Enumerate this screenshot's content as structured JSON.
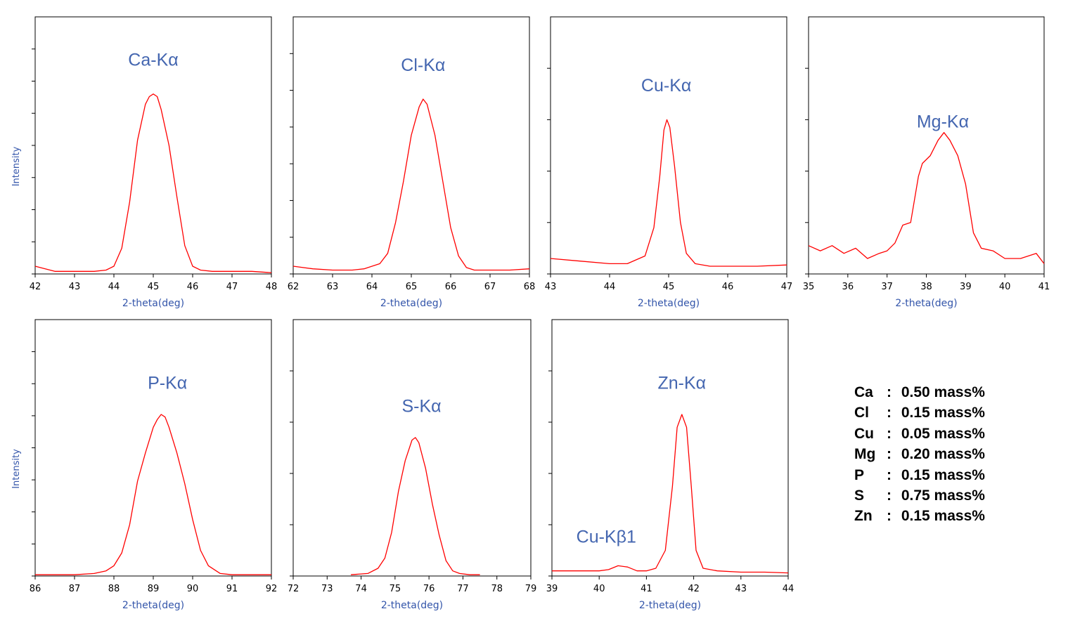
{
  "style": {
    "curve_color": "#ff0000",
    "label_color": "#4466b0",
    "axis_label_color": "#3355aa",
    "frame_color": "#000000",
    "text_color": "#000000"
  },
  "chart_data": [
    {
      "type": "line",
      "title": "Ca-Kα",
      "xlabel": "2-theta(deg)",
      "ylabel": "Intensity",
      "xlim": [
        42,
        48
      ],
      "ylim": [
        0,
        1
      ],
      "xticks": [
        "42",
        "43",
        "44",
        "45",
        "46",
        "47",
        "48"
      ],
      "yticks": 8,
      "peaks": [
        "Ca-Kα"
      ],
      "series": [
        {
          "name": "Ca-Kα",
          "x": [
            42,
            42.5,
            43,
            43.5,
            43.8,
            44.0,
            44.2,
            44.4,
            44.6,
            44.8,
            44.9,
            45.0,
            45.1,
            45.2,
            45.4,
            45.6,
            45.8,
            46.0,
            46.2,
            46.5,
            47,
            47.5,
            48
          ],
          "y": [
            0.03,
            0.01,
            0.01,
            0.01,
            0.015,
            0.03,
            0.1,
            0.28,
            0.52,
            0.66,
            0.69,
            0.7,
            0.69,
            0.64,
            0.5,
            0.3,
            0.11,
            0.03,
            0.015,
            0.01,
            0.01,
            0.01,
            0.005
          ]
        }
      ]
    },
    {
      "type": "line",
      "title": "Cl-Kα",
      "xlabel": "2-theta(deg)",
      "ylabel": "",
      "xlim": [
        62,
        68
      ],
      "ylim": [
        0,
        1
      ],
      "xticks": [
        "62",
        "63",
        "64",
        "65",
        "66",
        "67",
        "68"
      ],
      "yticks": 7,
      "peaks": [
        "Cl-Kα"
      ],
      "series": [
        {
          "name": "Cl-Kα",
          "x": [
            62,
            62.5,
            63,
            63.5,
            63.8,
            64.2,
            64.4,
            64.6,
            64.8,
            65.0,
            65.2,
            65.3,
            65.4,
            65.6,
            65.8,
            66.0,
            66.2,
            66.4,
            66.6,
            67,
            67.5,
            68
          ],
          "y": [
            0.03,
            0.02,
            0.015,
            0.015,
            0.02,
            0.04,
            0.08,
            0.2,
            0.36,
            0.54,
            0.65,
            0.68,
            0.66,
            0.54,
            0.36,
            0.18,
            0.07,
            0.025,
            0.015,
            0.015,
            0.015,
            0.02
          ]
        }
      ]
    },
    {
      "type": "line",
      "title": "Cu-Kα",
      "xlabel": "2-theta(deg)",
      "ylabel": "",
      "xlim": [
        43,
        47
      ],
      "ylim": [
        0,
        1
      ],
      "xticks": [
        "43",
        "44",
        "45",
        "46",
        "47"
      ],
      "yticks": 5,
      "peaks": [
        "Cu-Kα"
      ],
      "series": [
        {
          "name": "Cu-Kα",
          "x": [
            43,
            43.5,
            44,
            44.3,
            44.6,
            44.75,
            44.85,
            44.92,
            44.97,
            45.02,
            45.1,
            45.2,
            45.3,
            45.45,
            45.7,
            46,
            46.5,
            47
          ],
          "y": [
            0.06,
            0.05,
            0.04,
            0.04,
            0.07,
            0.18,
            0.38,
            0.56,
            0.6,
            0.57,
            0.42,
            0.2,
            0.08,
            0.04,
            0.03,
            0.03,
            0.03,
            0.035
          ]
        }
      ]
    },
    {
      "type": "line",
      "title": "Mg-Kα",
      "xlabel": "2-theta(deg)",
      "ylabel": "",
      "xlim": [
        35,
        41
      ],
      "ylim": [
        0,
        1
      ],
      "xticks": [
        "35",
        "36",
        "37",
        "38",
        "39",
        "40",
        "41"
      ],
      "yticks": 5,
      "peaks": [
        "Mg-Kα"
      ],
      "series": [
        {
          "name": "Mg-Kα",
          "x": [
            35,
            35.3,
            35.6,
            35.9,
            36.2,
            36.5,
            36.8,
            37.0,
            37.2,
            37.4,
            37.6,
            37.8,
            37.9,
            38.1,
            38.3,
            38.45,
            38.6,
            38.8,
            39.0,
            39.2,
            39.4,
            39.7,
            40.0,
            40.4,
            40.8,
            41.0
          ],
          "y": [
            0.11,
            0.09,
            0.11,
            0.08,
            0.1,
            0.06,
            0.08,
            0.09,
            0.12,
            0.19,
            0.2,
            0.38,
            0.43,
            0.46,
            0.52,
            0.55,
            0.52,
            0.46,
            0.35,
            0.16,
            0.1,
            0.09,
            0.06,
            0.06,
            0.08,
            0.04
          ]
        }
      ]
    },
    {
      "type": "line",
      "title": "P-Kα",
      "xlabel": "2-theta(deg)",
      "ylabel": "Intensity",
      "xlim": [
        86,
        92
      ],
      "ylim": [
        0,
        1
      ],
      "xticks": [
        "86",
        "87",
        "88",
        "89",
        "90",
        "91",
        "92"
      ],
      "yticks": 8,
      "peaks": [
        "P-Kα"
      ],
      "series": [
        {
          "name": "P-Kα",
          "x": [
            86,
            86.5,
            87,
            87.5,
            87.8,
            88.0,
            88.2,
            88.4,
            88.6,
            88.8,
            89.0,
            89.1,
            89.2,
            89.3,
            89.4,
            89.6,
            89.8,
            90.0,
            90.2,
            90.4,
            90.7,
            91,
            91.5,
            92
          ],
          "y": [
            0.005,
            0.005,
            0.005,
            0.01,
            0.02,
            0.04,
            0.09,
            0.2,
            0.37,
            0.48,
            0.58,
            0.61,
            0.63,
            0.62,
            0.58,
            0.48,
            0.36,
            0.22,
            0.1,
            0.04,
            0.01,
            0.005,
            0.005,
            0.005
          ]
        }
      ]
    },
    {
      "type": "line",
      "title": "S-Kα",
      "xlabel": "2-theta(deg)",
      "ylabel": "",
      "xlim": [
        72,
        79
      ],
      "ylim": [
        0,
        1
      ],
      "xticks": [
        "72",
        "73",
        "74",
        "75",
        "76",
        "77",
        "78",
        "79"
      ],
      "yticks": 5,
      "peaks": [
        "S-Kα"
      ],
      "series": [
        {
          "name": "S-Kα",
          "x": [
            73.7,
            74.2,
            74.5,
            74.7,
            74.9,
            75.1,
            75.3,
            75.5,
            75.6,
            75.7,
            75.9,
            76.1,
            76.3,
            76.5,
            76.7,
            76.9,
            77.2,
            77.5
          ],
          "y": [
            0.005,
            0.01,
            0.03,
            0.07,
            0.17,
            0.33,
            0.45,
            0.53,
            0.54,
            0.52,
            0.42,
            0.28,
            0.16,
            0.06,
            0.02,
            0.01,
            0.005,
            0.005
          ]
        }
      ]
    },
    {
      "type": "line",
      "title": "Zn-Kα",
      "xlabel": "2-theta(deg)",
      "ylabel": "",
      "xlim": [
        39,
        44
      ],
      "ylim": [
        0,
        1
      ],
      "xticks": [
        "39",
        "40",
        "41",
        "42",
        "43",
        "44"
      ],
      "yticks": 5,
      "peaks": [
        "Zn-Kα",
        "Cu-Kβ1"
      ],
      "series": [
        {
          "name": "Zn-Kα",
          "x": [
            39,
            39.5,
            40,
            40.2,
            40.4,
            40.6,
            40.8,
            41.0,
            41.2,
            41.4,
            41.55,
            41.65,
            41.75,
            41.85,
            41.95,
            42.05,
            42.2,
            42.5,
            43,
            43.5,
            44
          ],
          "y": [
            0.02,
            0.02,
            0.02,
            0.025,
            0.04,
            0.035,
            0.02,
            0.02,
            0.03,
            0.1,
            0.35,
            0.58,
            0.63,
            0.58,
            0.35,
            0.1,
            0.03,
            0.02,
            0.015,
            0.015,
            0.012
          ]
        }
      ]
    }
  ],
  "composition": {
    "rows": [
      {
        "element": "Ca",
        "value": "0.50 mass%"
      },
      {
        "element": "Cl",
        "value": "0.15 mass%"
      },
      {
        "element": "Cu",
        "value": "0.05 mass%"
      },
      {
        "element": "Mg",
        "value": "0.20 mass%"
      },
      {
        "element": "P",
        "value": "0.15 mass%"
      },
      {
        "element": "S",
        "value": "0.75 mass%"
      },
      {
        "element": "Zn",
        "value": "0.15 mass%"
      }
    ]
  }
}
